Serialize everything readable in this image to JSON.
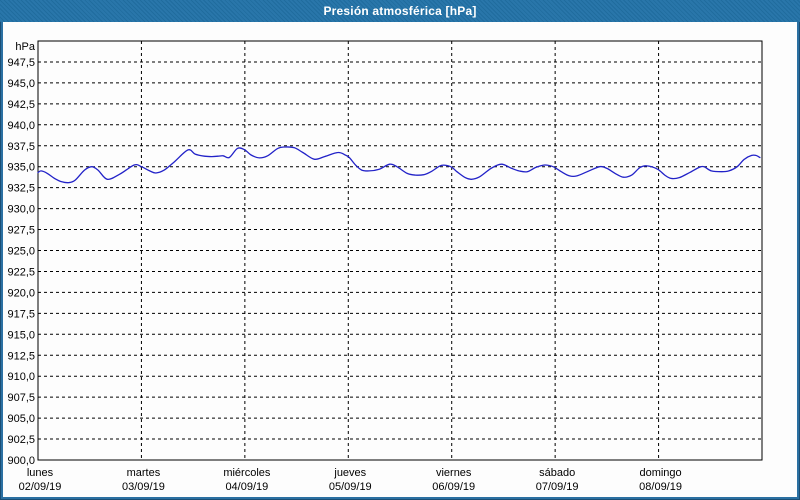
{
  "window": {
    "title": "Presión atmosférica [hPa]"
  },
  "colors": {
    "frame": "#2b70a2",
    "titlebar": "#2272a7",
    "title_text": "#ffffff",
    "plot_background": "#fdfdfd",
    "axis": "#000000",
    "gridline": "#000000",
    "series_line": "#2222c8",
    "label_text": "#000000"
  },
  "chart_data": {
    "type": "line",
    "title": "Presión atmosférica [hPa]",
    "unit_label": "hPa",
    "ylabel": "hPa",
    "xlabel": "",
    "ylim": [
      900,
      950
    ],
    "ytick_step": 2.5,
    "yticks": [
      947.5,
      945.0,
      942.5,
      940.0,
      937.5,
      935.0,
      932.5,
      930.0,
      927.5,
      925.0,
      922.5,
      920.0,
      917.5,
      915.0,
      912.5,
      910.0,
      907.5,
      905.0,
      902.5,
      900.0
    ],
    "ytick_labels": [
      "947,5",
      "945,0",
      "942,5",
      "940,0",
      "937,5",
      "935,0",
      "932,5",
      "930,0",
      "927,5",
      "925,0",
      "922,5",
      "920,0",
      "917,5",
      "915,0",
      "912,5",
      "910,0",
      "907,5",
      "905,0",
      "902,5",
      "900,0"
    ],
    "grid": "dashed",
    "legend_position": "none",
    "x_days": [
      {
        "weekday": "lunes",
        "date": "02/09/19"
      },
      {
        "weekday": "martes",
        "date": "03/09/19"
      },
      {
        "weekday": "miércoles",
        "date": "04/09/19"
      },
      {
        "weekday": "jueves",
        "date": "05/09/19"
      },
      {
        "weekday": "viernes",
        "date": "06/09/19"
      },
      {
        "weekday": "sábado",
        "date": "07/09/19"
      },
      {
        "weekday": "domingo",
        "date": "08/09/19"
      }
    ],
    "x_range_days": [
      0,
      7
    ],
    "series": [
      {
        "name": "presión atmosférica",
        "color": "#2222c8",
        "points": [
          [
            0.0,
            934.3
          ],
          [
            0.03,
            934.5
          ],
          [
            0.09,
            934.2
          ],
          [
            0.16,
            933.6
          ],
          [
            0.23,
            933.2
          ],
          [
            0.3,
            933.1
          ],
          [
            0.36,
            933.4
          ],
          [
            0.45,
            934.6
          ],
          [
            0.52,
            935.0
          ],
          [
            0.58,
            934.6
          ],
          [
            0.67,
            933.5
          ],
          [
            0.79,
            934.1
          ],
          [
            0.93,
            935.2
          ],
          [
            1.0,
            935.0
          ],
          [
            1.08,
            934.5
          ],
          [
            1.14,
            934.25
          ],
          [
            1.22,
            934.6
          ],
          [
            1.32,
            935.6
          ],
          [
            1.45,
            937.0
          ],
          [
            1.52,
            936.5
          ],
          [
            1.61,
            936.25
          ],
          [
            1.68,
            936.2
          ],
          [
            1.74,
            936.25
          ],
          [
            1.79,
            936.3
          ],
          [
            1.85,
            936.1
          ],
          [
            1.93,
            937.2
          ],
          [
            2.0,
            937.0
          ],
          [
            2.06,
            936.4
          ],
          [
            2.14,
            936.05
          ],
          [
            2.22,
            936.3
          ],
          [
            2.32,
            937.2
          ],
          [
            2.39,
            937.35
          ],
          [
            2.48,
            937.25
          ],
          [
            2.56,
            936.7
          ],
          [
            2.67,
            935.9
          ],
          [
            2.77,
            936.2
          ],
          [
            2.9,
            936.7
          ],
          [
            2.97,
            936.4
          ],
          [
            3.01,
            936.1
          ],
          [
            3.07,
            935.2
          ],
          [
            3.13,
            934.6
          ],
          [
            3.2,
            934.5
          ],
          [
            3.3,
            934.7
          ],
          [
            3.4,
            935.3
          ],
          [
            3.47,
            935.0
          ],
          [
            3.57,
            934.2
          ],
          [
            3.65,
            934.0
          ],
          [
            3.73,
            934.05
          ],
          [
            3.8,
            934.4
          ],
          [
            3.9,
            935.15
          ],
          [
            3.99,
            935.0
          ],
          [
            4.05,
            934.4
          ],
          [
            4.13,
            933.7
          ],
          [
            4.19,
            933.5
          ],
          [
            4.27,
            933.8
          ],
          [
            4.38,
            934.8
          ],
          [
            4.48,
            935.3
          ],
          [
            4.58,
            934.8
          ],
          [
            4.65,
            934.5
          ],
          [
            4.73,
            934.4
          ],
          [
            4.81,
            934.9
          ],
          [
            4.9,
            935.2
          ],
          [
            4.98,
            935.0
          ],
          [
            5.06,
            934.4
          ],
          [
            5.14,
            933.9
          ],
          [
            5.21,
            933.9
          ],
          [
            5.31,
            934.4
          ],
          [
            5.43,
            935.0
          ],
          [
            5.5,
            934.8
          ],
          [
            5.58,
            934.2
          ],
          [
            5.66,
            933.75
          ],
          [
            5.74,
            934.0
          ],
          [
            5.82,
            934.9
          ],
          [
            5.89,
            935.1
          ],
          [
            5.99,
            934.7
          ],
          [
            6.06,
            934.0
          ],
          [
            6.12,
            933.6
          ],
          [
            6.2,
            933.7
          ],
          [
            6.3,
            934.3
          ],
          [
            6.39,
            934.9
          ],
          [
            6.44,
            935.0
          ],
          [
            6.51,
            934.5
          ],
          [
            6.61,
            934.4
          ],
          [
            6.68,
            934.5
          ],
          [
            6.76,
            935.0
          ],
          [
            6.83,
            935.9
          ],
          [
            6.9,
            936.35
          ],
          [
            6.94,
            936.35
          ],
          [
            6.98,
            936.1
          ]
        ]
      }
    ]
  }
}
